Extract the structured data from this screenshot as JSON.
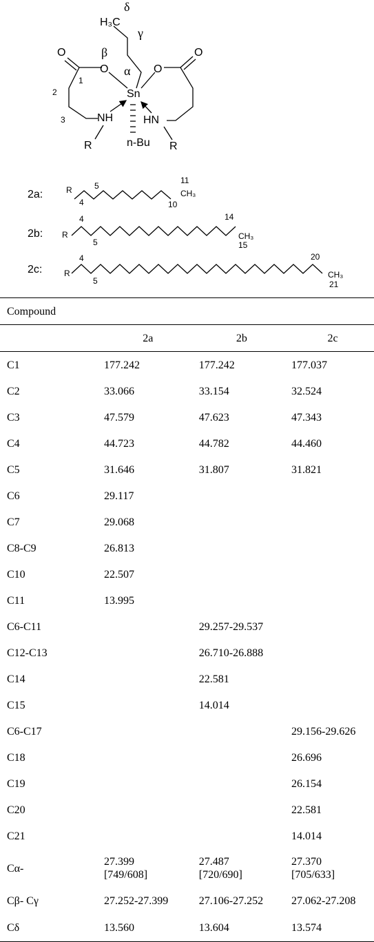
{
  "structure": {
    "labels": [
      "δ",
      "H₃C",
      "γ",
      "O",
      "β",
      "O",
      "α",
      "O",
      "O",
      "1",
      "2",
      "3",
      "Sn",
      "NH",
      "HN",
      "R",
      "R",
      "n-Bu"
    ]
  },
  "substituents": [
    {
      "name": "2a:",
      "labels": [
        "R",
        "4",
        "5",
        "11",
        "CH₃",
        "10"
      ]
    },
    {
      "name": "2b:",
      "labels": [
        "R",
        "4",
        "5",
        "14",
        "CH₃",
        "15"
      ]
    },
    {
      "name": "2c:",
      "labels": [
        "R",
        "4",
        "5",
        "20",
        "CH₃",
        "21"
      ]
    }
  ],
  "table": {
    "caption": "Compound",
    "columns": [
      "2a",
      "2b",
      "2c"
    ],
    "rows": [
      [
        "C1",
        "177.242",
        "177.242",
        "177.037"
      ],
      [
        "C2",
        "33.066",
        "33.154",
        "32.524"
      ],
      [
        "C3",
        "47.579",
        "47.623",
        "47.343"
      ],
      [
        "C4",
        "44.723",
        "44.782",
        "44.460"
      ],
      [
        "C5",
        "31.646",
        "31.807",
        "31.821"
      ],
      [
        "C6",
        "29.117",
        null,
        null
      ],
      [
        "C7",
        "29.068",
        null,
        null
      ],
      [
        "C8-C9",
        "26.813",
        null,
        null
      ],
      [
        "C10",
        "22.507",
        null,
        null
      ],
      [
        "C11",
        "13.995",
        null,
        null
      ],
      [
        "C6-C11",
        null,
        "29.257-29.537",
        null
      ],
      [
        "C12-C13",
        null,
        "26.710-26.888",
        null
      ],
      [
        "C14",
        null,
        "22.581",
        null
      ],
      [
        "C15",
        null,
        "14.014",
        null
      ],
      [
        "C6-C17",
        null,
        null,
        "29.156-29.626"
      ],
      [
        "C18",
        null,
        null,
        "26.696"
      ],
      [
        "C19",
        null,
        null,
        "26.154"
      ],
      [
        "C20",
        null,
        null,
        "22.581"
      ],
      [
        "C21",
        null,
        null,
        "14.014"
      ],
      [
        "Cα-",
        "27.399\n[749/608]",
        "27.487\n[720/690]",
        "27.370\n[705/633]"
      ],
      [
        "Cβ- Cγ",
        "27.252-27.399",
        "27.106-27.252",
        "27.062-27.208"
      ],
      [
        "Cδ",
        "13.560",
        "13.604",
        "13.574"
      ]
    ]
  }
}
